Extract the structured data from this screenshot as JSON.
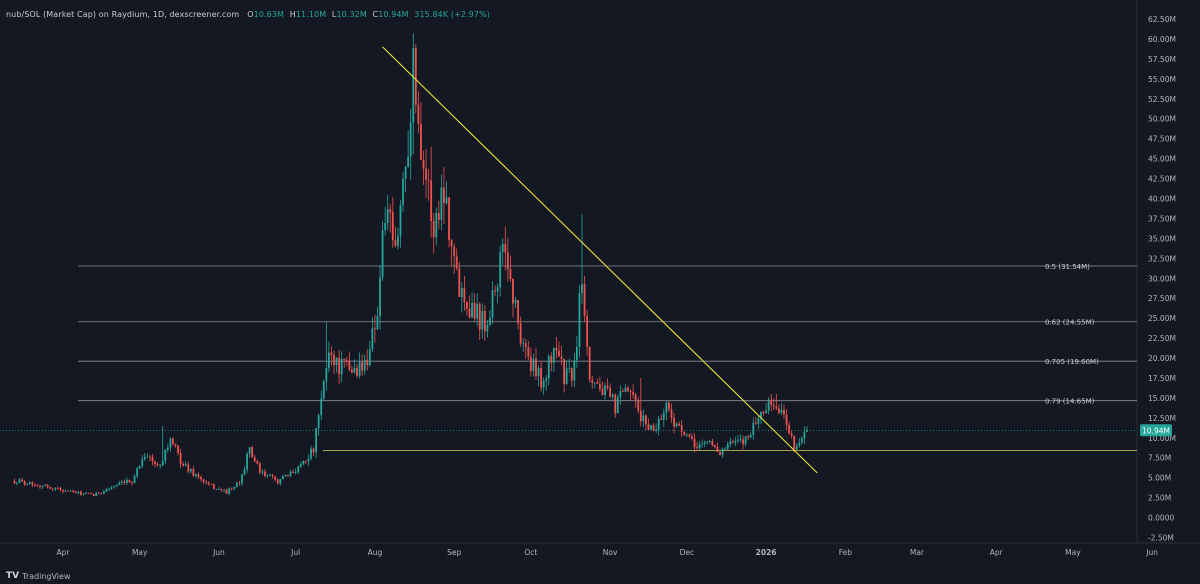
{
  "header": {
    "symbol": "nub/SOL (Market Cap) on Raydium, 1D, dexscreener.com",
    "open_label": "O",
    "open_value": "10.63M",
    "high_label": "H",
    "high_value": "11.10M",
    "low_label": "L",
    "low_value": "10.32M",
    "close_label": "C",
    "close_value": "10.94M",
    "change_value": "315.84K (+2.97%)"
  },
  "footer": {
    "brand": "TradingView",
    "logo_glyph": "TV"
  },
  "colors": {
    "background": "#141823",
    "up": "#26a69a",
    "down": "#ef5350",
    "trendline": "#e8e337",
    "support": "#bfb35a",
    "fib": "#8a8d95",
    "price_tag": "#26a69a"
  },
  "chart_data": {
    "type": "candlestick",
    "interval": "1D",
    "yunit": "USD market cap",
    "ylim": [
      -2500000,
      62500000
    ],
    "y_ticks": [
      "62.50M",
      "60.00M",
      "57.50M",
      "55.00M",
      "52.50M",
      "50.00M",
      "47.50M",
      "45.00M",
      "42.50M",
      "40.00M",
      "37.50M",
      "35.00M",
      "32.50M",
      "30.00M",
      "27.50M",
      "25.00M",
      "22.50M",
      "20.00M",
      "17.50M",
      "15.00M",
      "12.50M",
      "10.00M",
      "7.50M",
      "5.00M",
      "2.50M",
      "0.0000",
      "-2.50M"
    ],
    "x_ticks": [
      "Apr",
      "May",
      "Jun",
      "Jul",
      "Aug",
      "Sep",
      "Oct",
      "Nov",
      "Dec",
      "2026",
      "Feb",
      "Mar",
      "Apr",
      "May",
      "Jun"
    ],
    "x_tick_dates": [
      "2025-04-01",
      "2025-05-01",
      "2025-06-01",
      "2025-07-01",
      "2025-08-01",
      "2025-09-01",
      "2025-10-01",
      "2025-11-01",
      "2025-12-01",
      "2026-01-01",
      "2026-02-01",
      "2026-03-01",
      "2026-04-01",
      "2026-05-01",
      "2026-06-01"
    ],
    "current_price_label": "10.94M",
    "current_price": 10940000,
    "fib_levels": [
      {
        "label": "0.5 (31.54M)",
        "value": 31540000
      },
      {
        "label": "0.62 (24.55M)",
        "value": 24550000
      },
      {
        "label": "0.705 (19.60M)",
        "value": 19600000
      },
      {
        "label": "0.79 (14.65M)",
        "value": 14650000
      }
    ],
    "support_level": 8400000,
    "trendline": {
      "from": [
        "2025-08-04",
        59000000
      ],
      "to": [
        "2026-01-21",
        5600000
      ]
    },
    "anchors": [
      [
        "2025-03-13",
        4600000
      ],
      [
        "2025-03-20",
        4300000
      ],
      [
        "2025-03-28",
        3700000
      ],
      [
        "2025-04-06",
        3100000
      ],
      [
        "2025-04-13",
        2800000
      ],
      [
        "2025-04-20",
        3800000
      ],
      [
        "2025-04-28",
        4600000
      ],
      [
        "2025-05-03",
        8100000
      ],
      [
        "2025-05-08",
        6300000
      ],
      [
        "2025-05-13",
        9700000
      ],
      [
        "2025-05-18",
        6600000
      ],
      [
        "2025-05-23",
        5300000
      ],
      [
        "2025-05-28",
        4000000
      ],
      [
        "2025-06-04",
        3200000
      ],
      [
        "2025-06-09",
        4300000
      ],
      [
        "2025-06-13",
        8600000
      ],
      [
        "2025-06-17",
        5600000
      ],
      [
        "2025-06-24",
        4600000
      ],
      [
        "2025-06-29",
        5400000
      ],
      [
        "2025-07-04",
        7100000
      ],
      [
        "2025-07-08",
        8500000
      ],
      [
        "2025-07-11",
        14500000
      ],
      [
        "2025-07-14",
        21000000
      ],
      [
        "2025-07-18",
        19000000
      ],
      [
        "2025-07-23",
        18500000
      ],
      [
        "2025-07-28",
        19000000
      ],
      [
        "2025-08-02",
        26000000
      ],
      [
        "2025-08-05",
        38500000
      ],
      [
        "2025-08-09",
        33000000
      ],
      [
        "2025-08-13",
        45000000
      ],
      [
        "2025-08-16",
        56000000
      ],
      [
        "2025-08-20",
        45000000
      ],
      [
        "2025-08-24",
        36000000
      ],
      [
        "2025-08-28",
        42000000
      ],
      [
        "2025-09-02",
        30000000
      ],
      [
        "2025-09-07",
        27000000
      ],
      [
        "2025-09-13",
        24500000
      ],
      [
        "2025-09-17",
        29000000
      ],
      [
        "2025-09-21",
        34000000
      ],
      [
        "2025-09-26",
        24000000
      ],
      [
        "2025-10-01",
        19000000
      ],
      [
        "2025-10-06",
        17000000
      ],
      [
        "2025-10-11",
        22000000
      ],
      [
        "2025-10-14",
        17500000
      ],
      [
        "2025-10-18",
        18500000
      ],
      [
        "2025-10-21",
        31000000
      ],
      [
        "2025-10-24",
        18000000
      ],
      [
        "2025-10-29",
        16000000
      ],
      [
        "2025-11-03",
        14000000
      ],
      [
        "2025-11-08",
        16000000
      ],
      [
        "2025-11-13",
        12500000
      ],
      [
        "2025-11-18",
        11000000
      ],
      [
        "2025-11-23",
        14000000
      ],
      [
        "2025-11-28",
        11000000
      ],
      [
        "2025-12-04",
        9000000
      ],
      [
        "2025-12-10",
        9500000
      ],
      [
        "2025-12-14",
        8200000
      ],
      [
        "2025-12-18",
        9200000
      ],
      [
        "2025-12-23",
        9500000
      ],
      [
        "2025-12-28",
        12000000
      ],
      [
        "2026-01-01",
        14000000
      ],
      [
        "2026-01-04",
        14200000
      ],
      [
        "2026-01-06",
        13500000
      ],
      [
        "2026-01-09",
        12000000
      ],
      [
        "2026-01-12",
        9000000
      ],
      [
        "2026-01-15",
        9800000
      ],
      [
        "2026-01-17",
        10940000
      ]
    ],
    "spikes": [
      {
        "date": "2025-05-10",
        "high": 11500000
      },
      {
        "date": "2025-07-13",
        "high": 24500000
      },
      {
        "date": "2025-08-16",
        "high": 60700000
      },
      {
        "date": "2025-08-23",
        "high": 46500000
      },
      {
        "date": "2025-09-21",
        "high": 36500000
      },
      {
        "date": "2025-10-21",
        "high": 38000000
      },
      {
        "date": "2025-11-13",
        "high": 17500000
      },
      {
        "date": "2026-01-05",
        "high": 15500000
      }
    ]
  }
}
